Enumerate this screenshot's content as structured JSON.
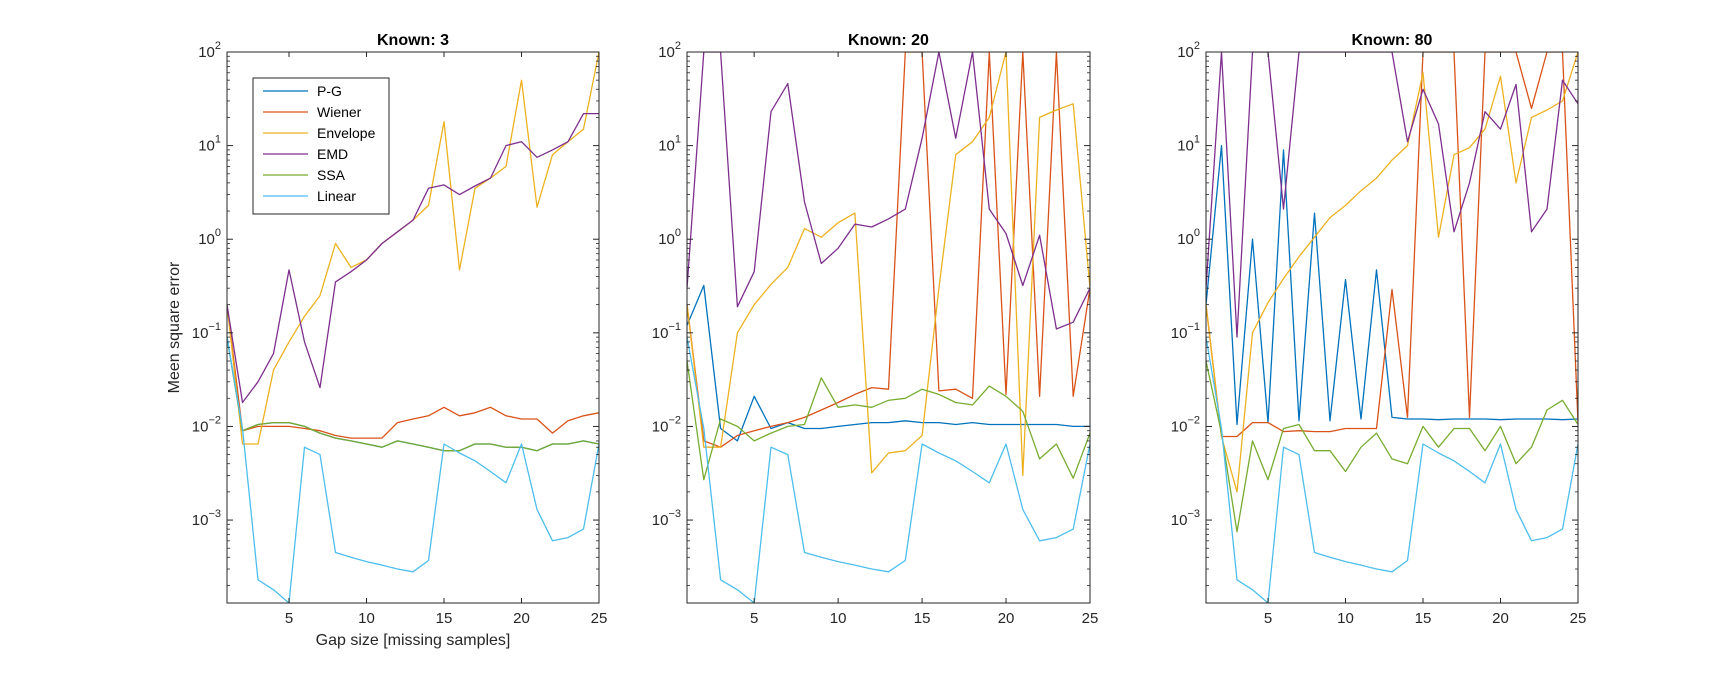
{
  "chart_data": [
    {
      "type": "line",
      "title": "Known: 3",
      "xlabel": "Gap size [missing samples]",
      "ylabel": "Meen square error",
      "xlim": [
        1,
        25
      ],
      "ylim": [
        0.00013,
        100
      ],
      "yscale": "log",
      "xticks": [
        5,
        10,
        15,
        20,
        25
      ],
      "yticks": [
        "10^-3",
        "10^-2",
        "10^-1",
        "10^0",
        "10^1",
        "10^2"
      ],
      "legend": {
        "placement": "top-left"
      },
      "grid": false,
      "x": [
        1,
        2,
        3,
        4,
        5,
        6,
        7,
        8,
        9,
        10,
        11,
        12,
        13,
        14,
        15,
        16,
        17,
        18,
        19,
        20,
        21,
        22,
        23,
        24,
        25
      ],
      "series": [
        {
          "name": "P-G",
          "color": "#0072BD",
          "values": [
            0.09,
            0.009,
            0.0105,
            0.011,
            0.011,
            0.01,
            0.0085,
            0.0075,
            0.007,
            0.0065,
            0.006,
            0.007,
            0.0065,
            0.006,
            0.0055,
            0.0055,
            0.0065,
            0.0065,
            0.006,
            0.006,
            0.0055,
            0.0065,
            0.0065,
            0.007,
            0.0065
          ]
        },
        {
          "name": "Wiener",
          "color": "#D95319",
          "values": [
            0.2,
            0.009,
            0.01,
            0.01,
            0.01,
            0.0095,
            0.009,
            0.008,
            0.0075,
            0.0075,
            0.0075,
            0.011,
            0.012,
            0.013,
            0.016,
            0.013,
            0.014,
            0.016,
            0.013,
            0.012,
            0.012,
            0.0085,
            0.0115,
            0.013,
            0.014
          ]
        },
        {
          "name": "Envelope",
          "color": "#EDB120",
          "values": [
            0.2,
            0.0065,
            0.0065,
            0.04,
            0.08,
            0.15,
            0.25,
            0.9,
            0.5,
            0.6,
            0.9,
            1.2,
            1.6,
            2.3,
            18,
            0.47,
            3.5,
            4.5,
            6,
            50,
            2.2,
            8,
            11,
            15,
            100
          ]
        },
        {
          "name": "EMD",
          "color": "#7E2F8E",
          "values": [
            0.2,
            0.018,
            0.03,
            0.06,
            0.47,
            0.08,
            0.026,
            0.35,
            0.45,
            0.6,
            0.9,
            1.2,
            1.6,
            3.5,
            3.8,
            3,
            3.7,
            4.5,
            10,
            11,
            7.5,
            9,
            11,
            22,
            22
          ]
        },
        {
          "name": "SSA",
          "color": "#77AC30",
          "values": [
            0.09,
            0.009,
            0.0105,
            0.011,
            0.011,
            0.01,
            0.0085,
            0.0075,
            0.007,
            0.0065,
            0.006,
            0.007,
            0.0065,
            0.006,
            0.0055,
            0.0055,
            0.0065,
            0.0065,
            0.006,
            0.006,
            0.0055,
            0.0065,
            0.0065,
            0.007,
            0.0065
          ]
        },
        {
          "name": "Linear",
          "color": "#4DBEEE",
          "values": [
            0.09,
            0.0095,
            0.00023,
            0.00018,
            0.00013,
            0.006,
            0.005,
            0.00045,
            0.0004,
            0.00036,
            0.00033,
            0.0003,
            0.00028,
            0.00037,
            0.0065,
            0.0052,
            0.0043,
            0.0033,
            0.0025,
            0.0065,
            0.0013,
            0.0006,
            0.00065,
            0.0008,
            0.0065
          ]
        }
      ]
    },
    {
      "type": "line",
      "title": "Known: 20",
      "xlabel": "",
      "ylabel": "",
      "xlim": [
        1,
        25
      ],
      "ylim": [
        0.00013,
        100
      ],
      "yscale": "log",
      "xticks": [
        5,
        10,
        15,
        20,
        25
      ],
      "yticks": [
        "10^-3",
        "10^-2",
        "10^-1",
        "10^0",
        "10^1",
        "10^2"
      ],
      "grid": false,
      "x": [
        1,
        2,
        3,
        4,
        5,
        6,
        7,
        8,
        9,
        10,
        11,
        12,
        13,
        14,
        15,
        16,
        17,
        18,
        19,
        20,
        21,
        22,
        23,
        24,
        25
      ],
      "series": [
        {
          "name": "P-G",
          "color": "#0072BD",
          "values": [
            0.12,
            0.32,
            0.0095,
            0.007,
            0.021,
            0.0095,
            0.011,
            0.0095,
            0.0095,
            0.01,
            0.0105,
            0.011,
            0.011,
            0.0115,
            0.011,
            0.011,
            0.0105,
            0.011,
            0.0105,
            0.0105,
            0.0105,
            0.0105,
            0.0105,
            0.01,
            0.01
          ]
        },
        {
          "name": "Wiener",
          "color": "#D95319",
          "values": [
            0.2,
            0.007,
            0.006,
            0.008,
            0.009,
            0.01,
            0.011,
            0.0125,
            0.015,
            0.018,
            0.022,
            0.026,
            0.025,
            100,
            100,
            0.024,
            0.025,
            0.02,
            100,
            0.022,
            100,
            0.021,
            100,
            0.021,
            0.3
          ]
        },
        {
          "name": "Envelope",
          "color": "#EDB120",
          "values": [
            0.2,
            0.006,
            0.006,
            0.1,
            0.2,
            0.33,
            0.5,
            1.3,
            1.05,
            1.5,
            1.9,
            0.0032,
            0.0052,
            0.0055,
            0.008,
            0.3,
            8,
            11,
            20,
            100,
            0.003,
            20,
            24,
            28,
            0.3
          ]
        },
        {
          "name": "EMD",
          "color": "#7E2F8E",
          "values": [
            0.3,
            100,
            100,
            0.19,
            0.45,
            23,
            46,
            2.5,
            0.55,
            0.8,
            1.45,
            1.35,
            1.65,
            2.1,
            12,
            100,
            12,
            100,
            2.1,
            1.15,
            0.32,
            1.1,
            0.11,
            0.13,
            0.3
          ]
        },
        {
          "name": "SSA",
          "color": "#77AC30",
          "values": [
            0.05,
            0.0027,
            0.012,
            0.01,
            0.007,
            0.0085,
            0.01,
            0.0105,
            0.033,
            0.016,
            0.017,
            0.016,
            0.019,
            0.02,
            0.025,
            0.022,
            0.018,
            0.017,
            0.027,
            0.021,
            0.0145,
            0.0045,
            0.0065,
            0.0028,
            0.0085
          ]
        },
        {
          "name": "Linear",
          "color": "#4DBEEE",
          "values": [
            0.09,
            0.0095,
            0.00023,
            0.00018,
            0.00013,
            0.006,
            0.005,
            0.00045,
            0.0004,
            0.00036,
            0.00033,
            0.0003,
            0.00028,
            0.00037,
            0.0065,
            0.0052,
            0.0043,
            0.0033,
            0.0025,
            0.0065,
            0.0013,
            0.0006,
            0.00065,
            0.0008,
            0.0065
          ]
        }
      ]
    },
    {
      "type": "line",
      "title": "Known: 80",
      "xlabel": "",
      "ylabel": "",
      "xlim": [
        1,
        25
      ],
      "ylim": [
        0.00013,
        100
      ],
      "yscale": "log",
      "xticks": [
        5,
        10,
        15,
        20,
        25
      ],
      "yticks": [
        "10^-3",
        "10^-2",
        "10^-1",
        "10^0",
        "10^1",
        "10^2"
      ],
      "grid": false,
      "x": [
        1,
        2,
        3,
        4,
        5,
        6,
        7,
        8,
        9,
        10,
        11,
        12,
        13,
        14,
        15,
        16,
        17,
        18,
        19,
        20,
        21,
        22,
        23,
        24,
        25
      ],
      "series": [
        {
          "name": "P-G",
          "color": "#0072BD",
          "values": [
            0.2,
            10,
            0.0105,
            1,
            0.011,
            9,
            0.0115,
            1.9,
            0.0115,
            0.37,
            0.012,
            0.47,
            0.0125,
            0.012,
            0.012,
            0.0118,
            0.012,
            0.012,
            0.012,
            0.0118,
            0.012,
            0.012,
            0.012,
            0.0118,
            0.012
          ]
        },
        {
          "name": "Wiener",
          "color": "#D95319",
          "values": [
            0.2,
            0.0078,
            0.0078,
            0.011,
            0.011,
            0.0088,
            0.009,
            0.0088,
            0.0088,
            0.0095,
            0.0095,
            0.0095,
            0.29,
            0.0125,
            100,
            100,
            100,
            0.0125,
            100,
            100,
            100,
            25,
            100,
            100,
            0.011
          ]
        },
        {
          "name": "Envelope",
          "color": "#EDB120",
          "values": [
            0.2,
            0.0078,
            0.002,
            0.1,
            0.21,
            0.38,
            0.65,
            1.05,
            1.7,
            2.3,
            3.3,
            4.5,
            7,
            10,
            60,
            1.05,
            8,
            9.5,
            15,
            55,
            4,
            20,
            24,
            30,
            100
          ]
        },
        {
          "name": "EMD",
          "color": "#7E2F8E",
          "values": [
            0.3,
            100,
            0.09,
            100,
            100,
            2.1,
            100,
            100,
            100,
            100,
            100,
            100,
            100,
            11,
            40,
            17,
            1.2,
            4,
            23,
            15,
            45,
            1.2,
            2.1,
            50,
            28
          ]
        },
        {
          "name": "SSA",
          "color": "#77AC30",
          "values": [
            0.05,
            0.0085,
            0.00075,
            0.007,
            0.0027,
            0.0095,
            0.0105,
            0.0055,
            0.0055,
            0.0033,
            0.006,
            0.0085,
            0.0045,
            0.004,
            0.01,
            0.006,
            0.0095,
            0.0095,
            0.0055,
            0.01,
            0.004,
            0.006,
            0.015,
            0.019,
            0.0105
          ]
        },
        {
          "name": "Linear",
          "color": "#4DBEEE",
          "values": [
            0.09,
            0.0095,
            0.00023,
            0.00018,
            0.00013,
            0.006,
            0.005,
            0.00045,
            0.0004,
            0.00036,
            0.00033,
            0.0003,
            0.00028,
            0.00037,
            0.0065,
            0.0052,
            0.0043,
            0.0033,
            0.0025,
            0.0065,
            0.0013,
            0.0006,
            0.00065,
            0.0008,
            0.0065
          ]
        }
      ]
    }
  ]
}
